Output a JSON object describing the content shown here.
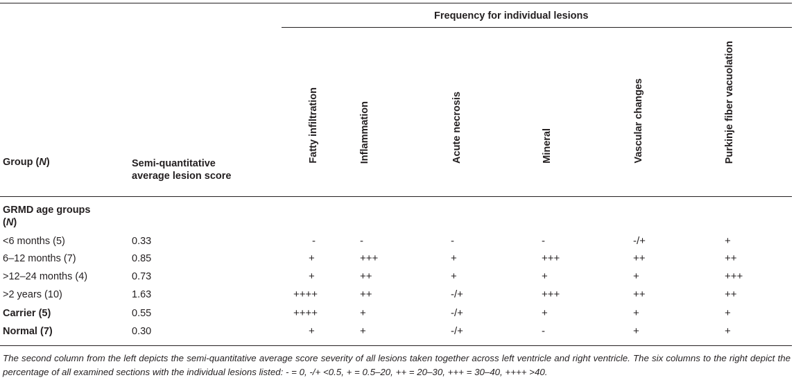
{
  "table": {
    "span_header": "Frequency for individual lesions",
    "group_header_main": "Group (",
    "group_header_n": "N",
    "group_header_close": ")",
    "score_header_line1": "Semi-quantitative",
    "score_header_line2": "average lesion score",
    "lesion_headers": [
      "Fatty infiltration",
      "Inflammation",
      "Acute necrosis",
      "Mineral",
      "Vascular changes",
      "Purkinje fiber vacuolation"
    ],
    "section_label_line1": "GRMD age groups",
    "section_label_line2_open": "(",
    "section_label_line2_n": "N",
    "section_label_line2_close": ")",
    "rows": [
      {
        "group": "<6 months (5)",
        "score": "0.33",
        "values": [
          "-",
          "-",
          "-",
          "-",
          "-/+",
          "+"
        ],
        "bold": false
      },
      {
        "group": "6–12 months (7)",
        "score": "0.85",
        "values": [
          "+",
          "+++",
          "+",
          "+++",
          "++",
          "++"
        ],
        "bold": false
      },
      {
        "group": ">12–24 months (4)",
        "score": "0.73",
        "values": [
          "+",
          "++",
          "+",
          "+",
          "+",
          "+++"
        ],
        "bold": false
      },
      {
        "group": ">2 years (10)",
        "score": "1.63",
        "values": [
          "++++",
          "++",
          "-/+",
          "+++",
          "++",
          "++"
        ],
        "bold": false
      },
      {
        "group": "Carrier (5)",
        "score": "0.55",
        "values": [
          "++++",
          "+",
          "-/+",
          "+",
          "+",
          "+"
        ],
        "bold": true
      },
      {
        "group": "Normal (7)",
        "score": "0.30",
        "values": [
          "+",
          "+",
          "-/+",
          "-",
          "+",
          "+"
        ],
        "bold": true
      }
    ]
  },
  "footnote": "The second column from the left depicts the semi-quantitative average score severity of all lesions taken together across left ventricle and right ventricle. The six columns to the right depict the percentage of all examined sections with the individual lesions listed: - = 0, -/+ <0.5, + = 0.5–20, ++ = 20–30, +++ = 30–40, ++++ >40."
}
